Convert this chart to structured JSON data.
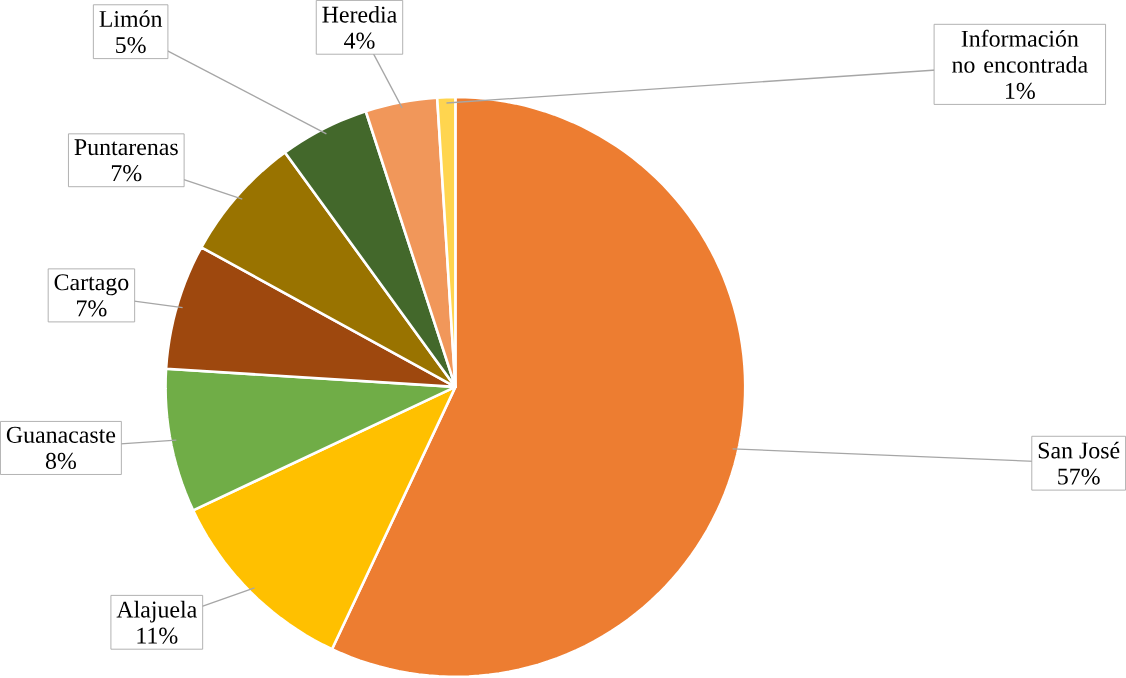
{
  "chart_data": {
    "type": "pie",
    "categories": [
      "San José",
      "Alajuela",
      "Guanacaste",
      "Cartago",
      "Puntarenas",
      "Limón",
      "Heredia",
      "Información no encontrada"
    ],
    "values": [
      57,
      11,
      8,
      7,
      7,
      5,
      4,
      1
    ],
    "value_labels": [
      "57%",
      "11%",
      "8%",
      "7%",
      "7%",
      "5%",
      "4%",
      "1%"
    ],
    "colors": [
      "#ed7d31",
      "#ffc000",
      "#70ad47",
      "#9e480e",
      "#997300",
      "#43682b",
      "#f1975a",
      "#ffd54f"
    ]
  }
}
